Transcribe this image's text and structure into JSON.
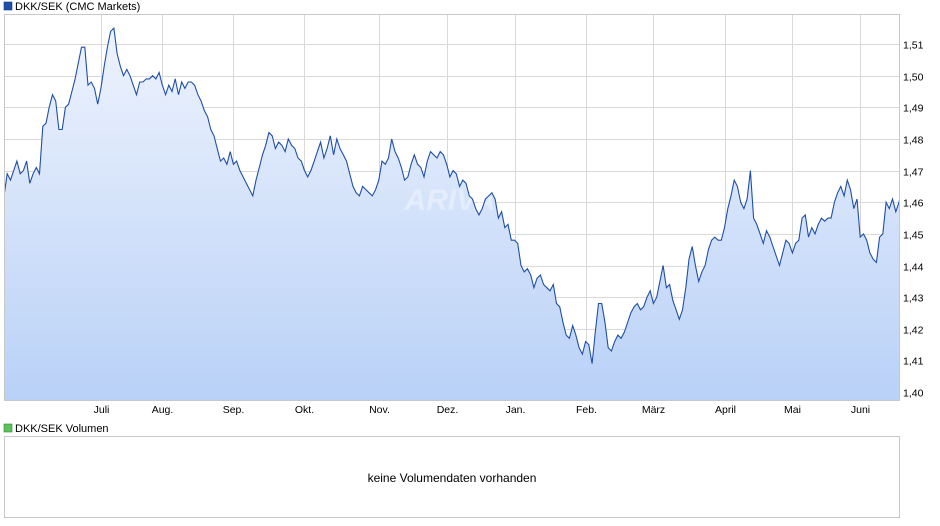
{
  "colors": {
    "line": "#1f4fa8",
    "fill_top": "#eef3fd",
    "fill_bottom": "#b9d1f7",
    "legend_main": "#1f4fa8",
    "legend_volume": "#5cc15c",
    "grid": "#d9d9d9"
  },
  "watermark": "ARIVA",
  "volume_panel": {
    "legend": "DKK/SEK Volumen",
    "message": "keine Volumendaten vorhanden"
  },
  "chart_data": {
    "type": "area",
    "legend": "DKK/SEK (CMC Markets)",
    "series": [
      {
        "name": "DKK/SEK (CMC Markets)",
        "values": [
          1.462,
          1.469,
          1.467,
          1.47,
          1.473,
          1.469,
          1.47,
          1.473,
          1.466,
          1.469,
          1.471,
          1.469,
          1.484,
          1.485,
          1.49,
          1.494,
          1.492,
          1.483,
          1.483,
          1.49,
          1.491,
          1.495,
          1.499,
          1.504,
          1.509,
          1.509,
          1.497,
          1.498,
          1.496,
          1.491,
          1.496,
          1.503,
          1.509,
          1.514,
          1.515,
          1.507,
          1.503,
          1.5,
          1.502,
          1.5,
          1.497,
          1.494,
          1.498,
          1.498,
          1.499,
          1.499,
          1.5,
          1.499,
          1.501,
          1.497,
          1.494,
          1.497,
          1.495,
          1.499,
          1.494,
          1.498,
          1.496,
          1.498,
          1.498,
          1.497,
          1.494,
          1.492,
          1.489,
          1.487,
          1.483,
          1.481,
          1.477,
          1.473,
          1.474,
          1.472,
          1.476,
          1.472,
          1.473,
          1.47,
          1.468,
          1.466,
          1.464,
          1.462,
          1.467,
          1.471,
          1.475,
          1.478,
          1.482,
          1.481,
          1.477,
          1.479,
          1.478,
          1.476,
          1.48,
          1.478,
          1.477,
          1.474,
          1.473,
          1.47,
          1.468,
          1.47,
          1.473,
          1.476,
          1.479,
          1.474,
          1.477,
          1.481,
          1.475,
          1.48,
          1.477,
          1.475,
          1.473,
          1.469,
          1.465,
          1.463,
          1.462,
          1.465,
          1.464,
          1.463,
          1.462,
          1.464,
          1.467,
          1.473,
          1.472,
          1.474,
          1.48,
          1.476,
          1.474,
          1.471,
          1.467,
          1.468,
          1.472,
          1.475,
          1.472,
          1.471,
          1.468,
          1.473,
          1.476,
          1.475,
          1.474,
          1.476,
          1.475,
          1.472,
          1.468,
          1.47,
          1.469,
          1.465,
          1.467,
          1.466,
          1.462,
          1.461,
          1.458,
          1.456,
          1.458,
          1.461,
          1.462,
          1.463,
          1.461,
          1.455,
          1.457,
          1.452,
          1.453,
          1.448,
          1.448,
          1.447,
          1.44,
          1.438,
          1.439,
          1.437,
          1.433,
          1.436,
          1.437,
          1.434,
          1.433,
          1.432,
          1.434,
          1.428,
          1.427,
          1.422,
          1.418,
          1.417,
          1.421,
          1.418,
          1.414,
          1.412,
          1.416,
          1.415,
          1.409,
          1.419,
          1.428,
          1.428,
          1.422,
          1.414,
          1.413,
          1.416,
          1.418,
          1.417,
          1.419,
          1.422,
          1.425,
          1.427,
          1.428,
          1.426,
          1.427,
          1.43,
          1.432,
          1.428,
          1.43,
          1.435,
          1.44,
          1.433,
          1.434,
          1.429,
          1.426,
          1.423,
          1.426,
          1.433,
          1.442,
          1.446,
          1.44,
          1.435,
          1.438,
          1.44,
          1.445,
          1.448,
          1.449,
          1.448,
          1.448,
          1.452,
          1.458,
          1.462,
          1.467,
          1.465,
          1.46,
          1.458,
          1.461,
          1.47,
          1.455,
          1.453,
          1.45,
          1.447,
          1.451,
          1.449,
          1.446,
          1.443,
          1.44,
          1.444,
          1.448,
          1.447,
          1.444,
          1.447,
          1.448,
          1.455,
          1.456,
          1.449,
          1.452,
          1.45,
          1.453,
          1.455,
          1.454,
          1.455,
          1.455,
          1.46,
          1.463,
          1.465,
          1.462,
          1.467,
          1.464,
          1.458,
          1.461,
          1.449,
          1.45,
          1.448,
          1.444,
          1.442,
          1.441,
          1.449,
          1.45,
          1.46,
          1.458,
          1.461,
          1.457,
          1.46,
          1.465,
          1.464,
          1.463
        ]
      }
    ],
    "x_labels": [
      "Juli",
      "Aug.",
      "Sep.",
      "Okt.",
      "Nov.",
      "Dez.",
      "Jan.",
      "Feb.",
      "März",
      "April",
      "Mai",
      "Juni"
    ],
    "x_label_positions": [
      30,
      49,
      71,
      93,
      116,
      137,
      158,
      180,
      201,
      223,
      244,
      265
    ],
    "y_ticks": [
      "1,40",
      "1,41",
      "1,42",
      "1,43",
      "1,44",
      "1,45",
      "1,46",
      "1,47",
      "1,48",
      "1,49",
      "1,50",
      "1,51"
    ],
    "y_tick_values": [
      1.4,
      1.41,
      1.42,
      1.43,
      1.44,
      1.45,
      1.46,
      1.47,
      1.48,
      1.49,
      1.5,
      1.51
    ],
    "ylim": [
      1.3975,
      1.5195
    ],
    "grid": true,
    "legend_position": "top-left"
  }
}
